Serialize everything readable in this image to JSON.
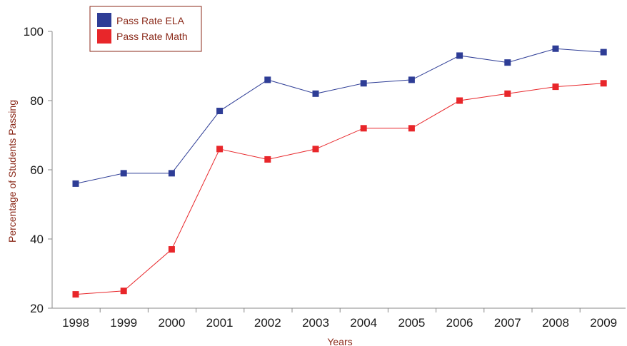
{
  "chart_data": {
    "type": "line",
    "title": "",
    "xlabel": "Years",
    "ylabel": "Percentage of Students Passing",
    "categories": [
      "1998",
      "1999",
      "2000",
      "2001",
      "2002",
      "2003",
      "2004",
      "2005",
      "2006",
      "2007",
      "2008",
      "2009"
    ],
    "ylim": [
      20,
      100
    ],
    "yticks": [
      "20",
      "40",
      "60",
      "80",
      "100"
    ],
    "grid": false,
    "legend_position": "top-left",
    "series": [
      {
        "name": "Pass Rate ELA",
        "color": "#2e3d96",
        "values": [
          56,
          59,
          59,
          77,
          86,
          82,
          85,
          86,
          93,
          91,
          95,
          94
        ]
      },
      {
        "name": "Pass Rate Math",
        "color": "#e8262a",
        "values": [
          24,
          25,
          37,
          66,
          63,
          66,
          72,
          72,
          80,
          82,
          84,
          85
        ]
      }
    ]
  }
}
